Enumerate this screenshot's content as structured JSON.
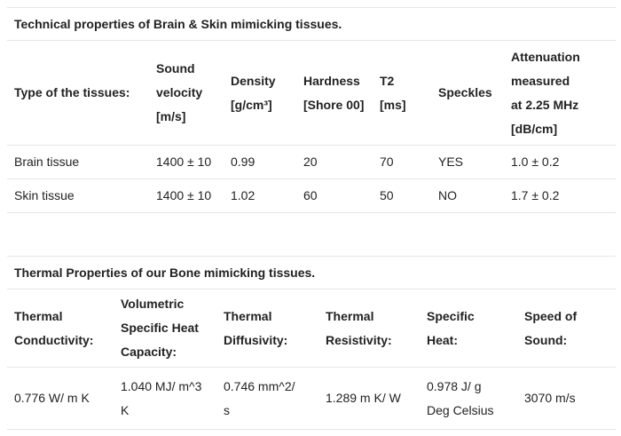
{
  "table1": {
    "caption": "Technical properties of Brain & Skin mimicking tissues.",
    "headers": [
      [
        "Type of the tissues:"
      ],
      [
        "Sound",
        "velocity",
        "[m/s]"
      ],
      [
        "Density",
        "[g/cm³]"
      ],
      [
        "Hardness",
        "[Shore 00]"
      ],
      [
        "T2",
        "[ms]"
      ],
      [
        "Speckles"
      ],
      [
        "Attenuation",
        "measured",
        "at 2.25 MHz",
        "[dB/cm]"
      ]
    ],
    "rows": [
      [
        "Brain tissue",
        "1400 ± 10",
        "0.99",
        "20",
        "70",
        "YES",
        "1.0 ± 0.2"
      ],
      [
        "Skin tissue",
        "1400 ± 10",
        "1.02",
        "60",
        "50",
        "NO",
        "1.7 ± 0.2"
      ]
    ]
  },
  "table2": {
    "caption": "Thermal Properties of our Bone mimicking tissues.",
    "headers": [
      [
        "Thermal",
        "Conductivity:"
      ],
      [
        "Volumetric",
        "Specific Heat",
        "Capacity:"
      ],
      [
        "Thermal",
        "Diffusivity:"
      ],
      [
        "Thermal",
        "Resistivity:"
      ],
      [
        "Specific",
        "Heat:"
      ],
      [
        "Speed of",
        "Sound:"
      ]
    ],
    "rows": [
      [
        [
          "0.776 W/ m K"
        ],
        [
          "1.040 MJ/ m^3",
          "K"
        ],
        [
          "0.746 mm^2/",
          "s"
        ],
        [
          "1.289 m K/ W"
        ],
        [
          "0.978 J/ g",
          "Deg Celsius"
        ],
        [
          "3070 m/s"
        ]
      ]
    ]
  }
}
